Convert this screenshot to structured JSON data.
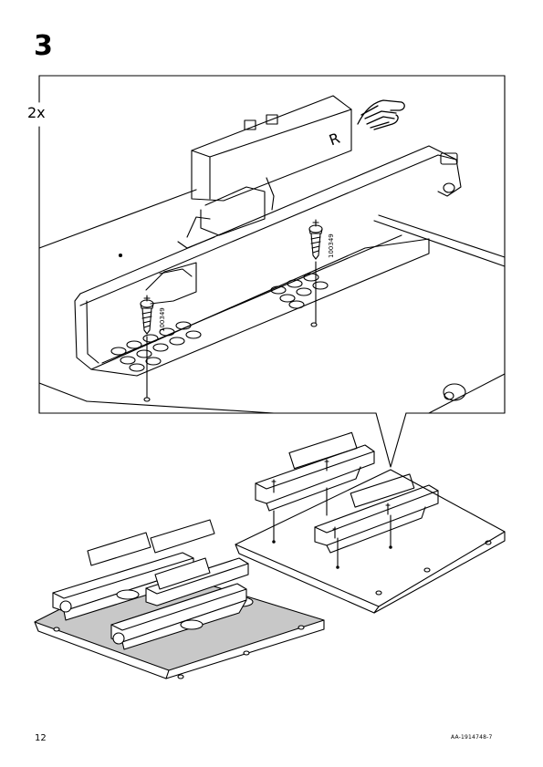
{
  "page": {
    "step_number": "3",
    "quantity": "2x",
    "screw_part_number": "100349",
    "page_number": "12",
    "document_code": "AA-1914748-7",
    "colors": {
      "line": "#000000",
      "shading": "#c8c8c8",
      "paper": "#ffffff"
    },
    "icons": [
      "hand-pointing-icon",
      "screw-icon",
      "drawer-runner-illustration"
    ],
    "runner_label": "R"
  }
}
